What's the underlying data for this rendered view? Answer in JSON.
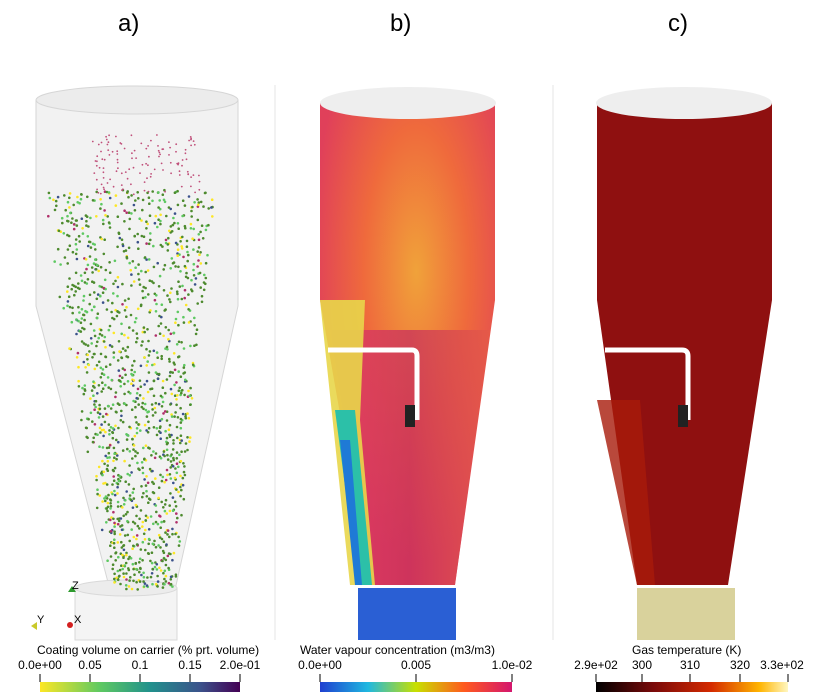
{
  "panels": [
    {
      "label": "a)",
      "colorbar": {
        "title": "Coating volume on carrier (% prt. volume)",
        "ticks": [
          "0.0e+00",
          "0.05",
          "0.1",
          "0.15",
          "2.0e-01"
        ],
        "colormap": [
          "#fde725",
          "#5ec962",
          "#21918c",
          "#3b528b",
          "#440154"
        ]
      },
      "axes_triad": {
        "z": "Z",
        "y": "Y",
        "x": "X"
      }
    },
    {
      "label": "b)",
      "colorbar": {
        "title": "Water vapour concentration (m3/m3)",
        "ticks": [
          "0.0e+00",
          "0.005",
          "1.0e-02"
        ],
        "colormap": [
          "#1f3fd0",
          "#1fb8e0",
          "#c8e000",
          "#ff5a1e",
          "#d4166e"
        ]
      }
    },
    {
      "label": "c)",
      "colorbar": {
        "title": "Gas temperature (K)",
        "ticks": [
          "2.9e+02",
          "300",
          "310",
          "320",
          "3.3e+02"
        ],
        "colormap": [
          "#000000",
          "#7a0a0a",
          "#d42a00",
          "#ffb400",
          "#fff7c0"
        ]
      }
    }
  ],
  "colors": {
    "vessel": "#eeeeee",
    "particles_green": "#4d8a2e",
    "vapour_bottom": "#2a5fd4",
    "temperature_body": "#8f1010",
    "temperature_bottom": "#d9d29c"
  }
}
